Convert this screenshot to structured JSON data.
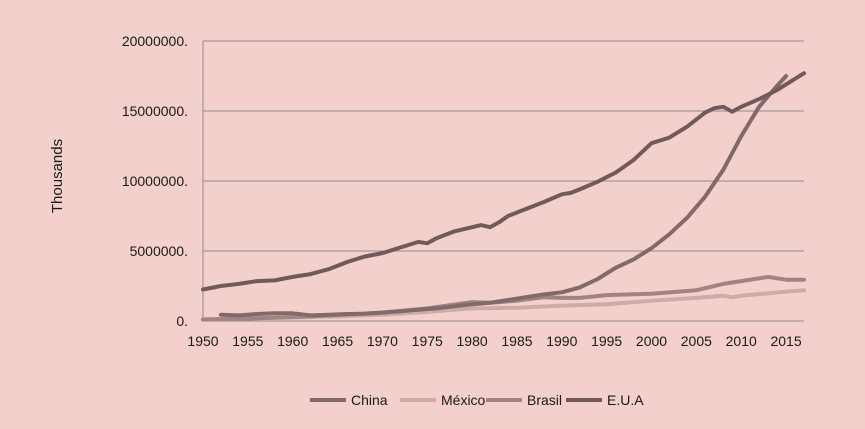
{
  "chart_data": {
    "type": "line",
    "title": "",
    "xlabel": "",
    "ylabel": "Thousands",
    "xlim": [
      1950,
      2017
    ],
    "ylim": [
      0,
      20000000
    ],
    "x_ticks": [
      1950,
      1955,
      1960,
      1965,
      1970,
      1975,
      1980,
      1985,
      1990,
      1995,
      2000,
      2005,
      2010,
      2015
    ],
    "x_tick_labels": [
      "1950",
      "1955",
      "1960",
      "1965",
      "1970",
      "1975",
      "1980",
      "1985",
      "1990",
      "1995",
      "2000",
      "2005",
      "2010",
      "2015"
    ],
    "y_ticks": [
      0,
      5000000,
      10000000,
      15000000,
      20000000
    ],
    "y_tick_labels": [
      "0.",
      "5000000.",
      "10000000.",
      "15000000.",
      "20000000."
    ],
    "grid": "horizontal",
    "legend_position": "bottom",
    "series": [
      {
        "name": "China",
        "color": "#826a6a",
        "x": [
          1952,
          1954,
          1956,
          1958,
          1960,
          1962,
          1964,
          1966,
          1968,
          1970,
          1972,
          1974,
          1976,
          1978,
          1980,
          1982,
          1984,
          1986,
          1988,
          1990,
          1992,
          1994,
          1996,
          1998,
          2000,
          2002,
          2004,
          2006,
          2008,
          2010,
          2012,
          2014,
          2015
        ],
        "values": [
          450000,
          400000,
          500000,
          550000,
          550000,
          400000,
          450000,
          500000,
          520000,
          600000,
          700000,
          800000,
          900000,
          1050000,
          1200000,
          1300000,
          1500000,
          1700000,
          1900000,
          2050000,
          2400000,
          3000000,
          3800000,
          4400000,
          5200000,
          6200000,
          7400000,
          8900000,
          10800000,
          13200000,
          15300000,
          16800000,
          17500000
        ]
      },
      {
        "name": "México",
        "color": "#cfaba8",
        "x": [
          1950,
          1955,
          1960,
          1965,
          1970,
          1975,
          1980,
          1985,
          1990,
          1995,
          2000,
          2005,
          2008,
          2009,
          2010,
          2015,
          2017
        ],
        "values": [
          120000,
          180000,
          250000,
          330000,
          450000,
          650000,
          900000,
          950000,
          1100000,
          1200000,
          1450000,
          1650000,
          1800000,
          1700000,
          1800000,
          2100000,
          2200000
        ]
      },
      {
        "name": "Brasil",
        "color": "#a08483",
        "x": [
          1950,
          1955,
          1960,
          1965,
          1970,
          1975,
          1980,
          1982,
          1985,
          1988,
          1990,
          1992,
          1995,
          2000,
          2005,
          2008,
          2010,
          2013,
          2015,
          2017
        ],
        "values": [
          100000,
          180000,
          280000,
          430000,
          600000,
          900000,
          1350000,
          1300000,
          1450000,
          1700000,
          1650000,
          1650000,
          1850000,
          1950000,
          2200000,
          2650000,
          2850000,
          3150000,
          2950000,
          2950000
        ]
      },
      {
        "name": "E.U.A",
        "color": "#735a5a",
        "x": [
          1950,
          1952,
          1954,
          1956,
          1958,
          1960,
          1962,
          1964,
          1966,
          1968,
          1970,
          1972,
          1974,
          1975,
          1976,
          1978,
          1980,
          1981,
          1982,
          1983,
          1984,
          1986,
          1988,
          1990,
          1991,
          1992,
          1994,
          1996,
          1998,
          2000,
          2002,
          2004,
          2006,
          2007,
          2008,
          2009,
          2010,
          2012,
          2014,
          2016,
          2017
        ],
        "values": [
          2250000,
          2500000,
          2650000,
          2850000,
          2900000,
          3150000,
          3350000,
          3700000,
          4200000,
          4600000,
          4850000,
          5250000,
          5650000,
          5550000,
          5900000,
          6400000,
          6700000,
          6850000,
          6700000,
          7050000,
          7500000,
          8000000,
          8500000,
          9050000,
          9150000,
          9400000,
          9950000,
          10600000,
          11500000,
          12700000,
          13100000,
          13900000,
          14900000,
          15200000,
          15300000,
          14950000,
          15300000,
          15850000,
          16500000,
          17300000,
          17700000
        ]
      }
    ]
  }
}
